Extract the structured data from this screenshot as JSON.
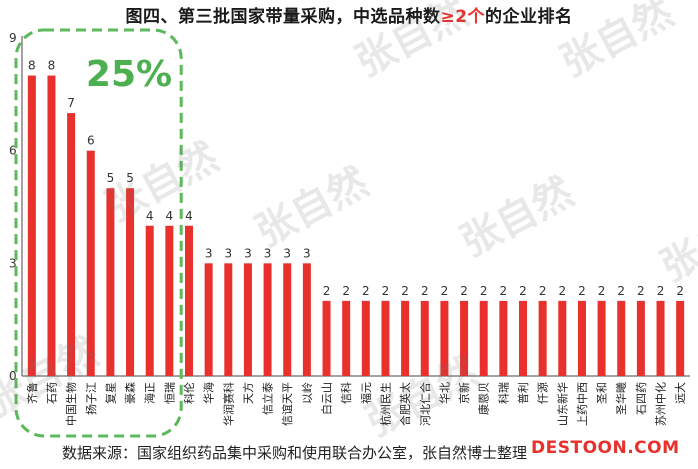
{
  "title": {
    "part1": "图四、第三批国家带量采购，中选品种数",
    "highlight": "≥2个",
    "part2": "的企业排名"
  },
  "annotation": "25%",
  "source": "数据来源：国家组织药品集中采购和使用联合办公室，张自然博士整理",
  "logo_text": "DESTOON.COM",
  "watermark": "张自然",
  "colors": {
    "bar": "#e8302c",
    "highlight_box": "#5cb85c",
    "annotation": "#4caf50"
  },
  "chart_data": {
    "type": "bar",
    "title": "图四、第三批国家带量采购，中选品种数≥2个的企业排名",
    "xlabel": "",
    "ylabel": "",
    "ylim": [
      0,
      9
    ],
    "yticks": [
      0,
      3,
      6,
      9
    ],
    "grid": false,
    "categories": [
      "齐鲁",
      "石药",
      "中国生物",
      "扬子江",
      "复星",
      "豪森",
      "海正",
      "恒瑞",
      "科伦",
      "华海",
      "华润赛科",
      "天方",
      "信立泰",
      "信谊天平",
      "以岭",
      "白云山",
      "信科",
      "福元",
      "杭州民生",
      "合肥英太",
      "河北仁合",
      "华北",
      "京新",
      "康恩贝",
      "科瑞",
      "普利",
      "仟源",
      "山东新华",
      "上药中西",
      "圣和",
      "圣华曦",
      "石四药",
      "苏州中化",
      "远大"
    ],
    "values": [
      8,
      8,
      7,
      6,
      5,
      5,
      4,
      4,
      4,
      3,
      3,
      3,
      3,
      3,
      3,
      2,
      2,
      2,
      2,
      2,
      2,
      2,
      2,
      2,
      2,
      2,
      2,
      2,
      2,
      2,
      2,
      2,
      2,
      2
    ]
  }
}
